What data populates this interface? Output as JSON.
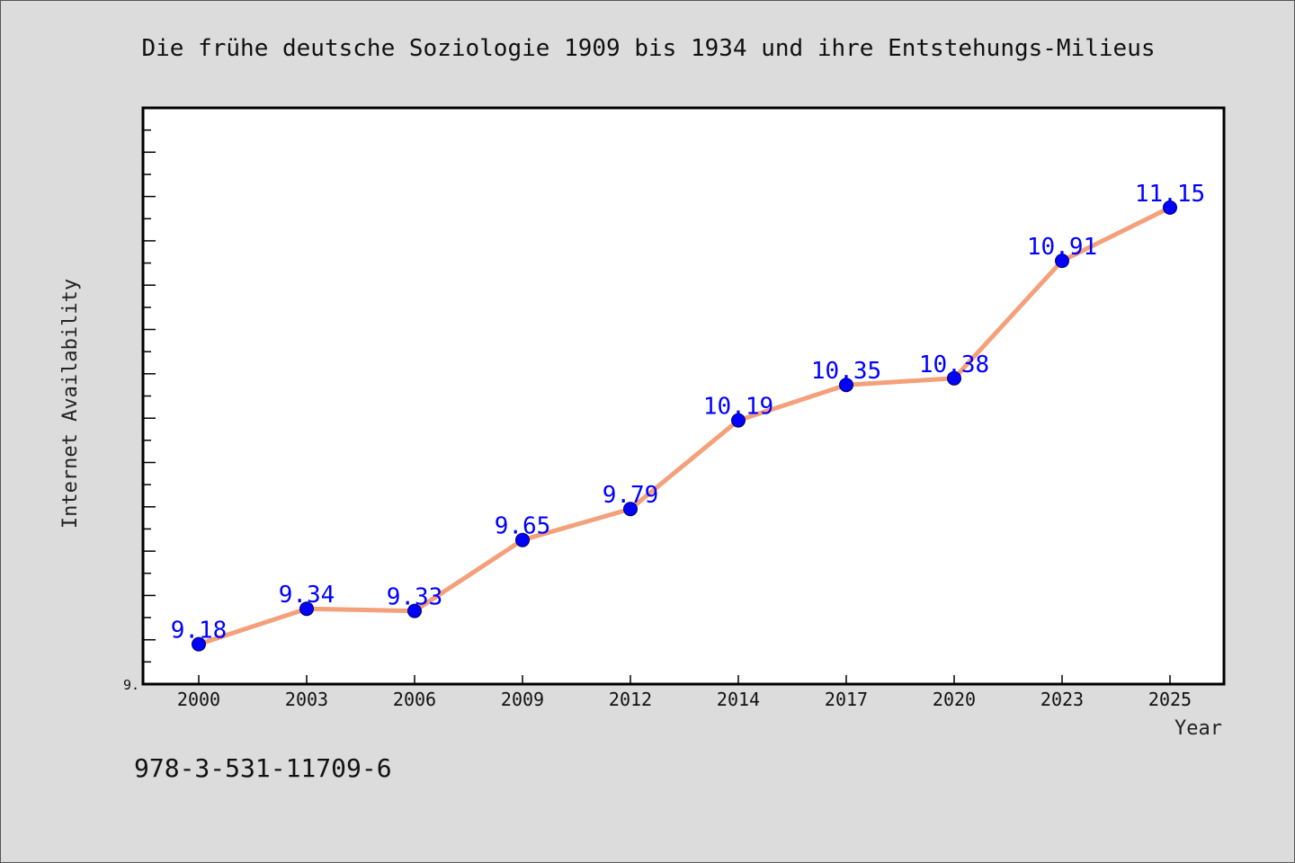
{
  "chart_data": {
    "type": "line",
    "title": "Die frühe deutsche Soziologie 1909 bis 1934 und ihre Entstehungs-Milieus",
    "xlabel": "Year",
    "ylabel": "Internet Availability",
    "categories": [
      "2000",
      "2003",
      "2006",
      "2009",
      "2012",
      "2014",
      "2017",
      "2020",
      "2023",
      "2025"
    ],
    "series": [
      {
        "values": [
          9.18,
          9.34,
          9.33,
          9.65,
          9.79,
          10.19,
          10.35,
          10.38,
          10.91,
          11.15
        ],
        "labels": [
          "9.18",
          "9.34",
          "9.33",
          "9.65",
          "9.79",
          "10.19",
          "10.35",
          "10.38",
          "10.91",
          "11.15"
        ]
      }
    ],
    "ylim": [
      9.0,
      11.6
    ],
    "y_tick_label": "9.",
    "grid": false,
    "legend": "none",
    "colors": {
      "line": "#f4a07a",
      "marker": "#0000ff",
      "data_label": "#0000ff",
      "plot_background": "#ffffff",
      "figure_background": "#dcdcdc"
    }
  },
  "footer": {
    "isbn": "978-3-531-11709-6"
  }
}
